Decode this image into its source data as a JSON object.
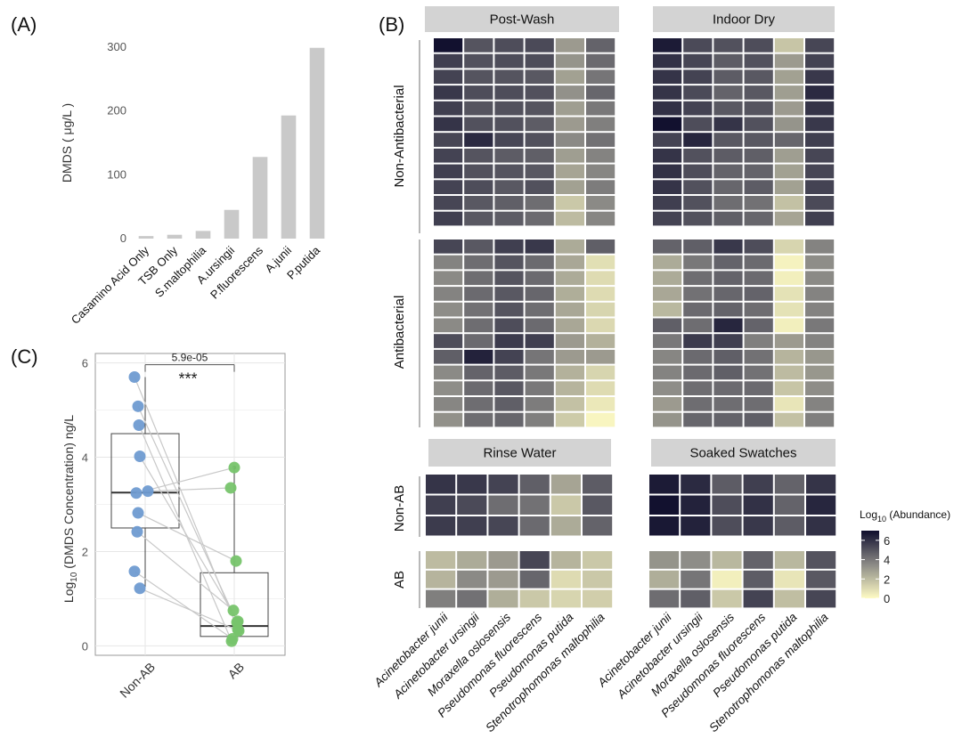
{
  "panel_labels": {
    "a": "(A)",
    "b": "(B)",
    "c": "(C)"
  },
  "colors": {
    "bar": "#c9c9c9",
    "non_ab_point": "#6f9bd1",
    "ab_point": "#77c46b",
    "heat_low": "#fffcc4",
    "heat_mid": "#8b8a86",
    "heat_high": "#0e0d2c",
    "strip": "#d3d3d3"
  },
  "chart_data": [
    {
      "id": "A",
      "type": "bar",
      "title": "",
      "xlabel": "",
      "ylabel": "DMDS ( μg/L )",
      "ylim": [
        0,
        300
      ],
      "yticks": [
        0,
        100,
        200,
        300
      ],
      "categories": [
        "Casamino Acid Only",
        "TSB Only",
        "S.maltophilia",
        "A.ursingii",
        "P.fluorescens",
        "A.junii",
        "P.putida"
      ],
      "values": [
        4,
        6,
        12,
        45,
        128,
        193,
        299
      ]
    },
    {
      "id": "B",
      "type": "heatmap",
      "legend_title_prefix": "Log",
      "legend_title_sub": "10",
      "legend_title_suffix": " (Abundance)",
      "legend_ticks": [
        6,
        4,
        2,
        0
      ],
      "value_range": [
        0,
        7
      ],
      "col_strips": {
        "top": [
          "Post-Wash",
          "Indoor Dry"
        ],
        "bottom": [
          "Rinse Water",
          "Soaked Swatches"
        ]
      },
      "row_strips": {
        "top": [
          "Non-Antibacterial",
          "Antibacterial"
        ],
        "bottom": [
          "Non-AB",
          "AB"
        ]
      },
      "species": [
        "Acinetobacter junii",
        "Acinetobacter ursingii",
        "Moraxella oslosensis",
        "Pseudomonas fluorescens",
        "Pseudomonas putida",
        "Stenotrophomonas maltophilia"
      ],
      "facets": {
        "post_wash_non": [
          [
            6.9,
            5.0,
            5.2,
            5.3,
            3.0,
            4.6
          ],
          [
            5.6,
            5.1,
            5.2,
            5.2,
            3.2,
            4.4
          ],
          [
            5.5,
            5.0,
            5.0,
            4.9,
            2.8,
            4.1
          ],
          [
            5.8,
            5.2,
            5.2,
            5.1,
            3.3,
            4.5
          ],
          [
            5.6,
            5.0,
            5.1,
            5.0,
            2.9,
            4.0
          ],
          [
            5.9,
            5.1,
            5.1,
            4.8,
            3.0,
            3.8
          ],
          [
            5.4,
            6.2,
            5.4,
            5.1,
            3.5,
            4.2
          ],
          [
            5.5,
            5.0,
            4.8,
            4.7,
            2.9,
            3.7
          ],
          [
            5.6,
            5.1,
            5.0,
            4.9,
            2.7,
            3.6
          ],
          [
            5.5,
            5.2,
            4.9,
            5.1,
            2.8,
            3.9
          ],
          [
            5.4,
            4.9,
            4.7,
            4.3,
            1.6,
            3.5
          ],
          [
            5.6,
            4.9,
            4.8,
            4.4,
            2.0,
            3.6
          ]
        ],
        "indoor_dry_non": [
          [
            6.6,
            5.3,
            5.1,
            5.2,
            1.7,
            5.4
          ],
          [
            6.0,
            5.4,
            4.8,
            5.1,
            3.0,
            5.5
          ],
          [
            5.9,
            5.5,
            4.8,
            4.9,
            2.8,
            5.8
          ],
          [
            5.9,
            5.3,
            4.6,
            4.9,
            2.9,
            6.2
          ],
          [
            6.0,
            5.5,
            4.9,
            5.0,
            3.0,
            5.9
          ],
          [
            6.9,
            5.2,
            5.9,
            5.1,
            3.2,
            5.8
          ],
          [
            5.5,
            6.3,
            4.9,
            4.9,
            4.5,
            5.6
          ],
          [
            5.9,
            5.1,
            4.8,
            4.7,
            2.9,
            5.4
          ],
          [
            6.0,
            5.2,
            4.6,
            4.6,
            2.8,
            5.4
          ],
          [
            5.9,
            5.1,
            4.5,
            4.8,
            2.8,
            5.5
          ],
          [
            5.6,
            5.1,
            4.3,
            4.2,
            1.8,
            5.3
          ],
          [
            5.5,
            5.1,
            4.7,
            4.5,
            2.7,
            5.6
          ]
        ],
        "post_wash_ab": [
          [
            5.4,
            4.9,
            5.6,
            5.8,
            2.5,
            4.7
          ],
          [
            3.7,
            4.3,
            5.0,
            4.4,
            2.6,
            0.9
          ],
          [
            3.5,
            4.3,
            5.0,
            4.4,
            2.5,
            1.0
          ],
          [
            3.7,
            4.4,
            4.9,
            4.5,
            2.4,
            1.0
          ],
          [
            3.4,
            4.2,
            5.0,
            4.3,
            2.6,
            1.2
          ],
          [
            3.5,
            4.3,
            5.2,
            4.4,
            2.6,
            1.1
          ],
          [
            5.2,
            4.4,
            5.7,
            5.6,
            3.0,
            2.3
          ],
          [
            4.7,
            6.4,
            5.5,
            4.1,
            3.0,
            3.0
          ],
          [
            3.5,
            4.6,
            4.8,
            4.0,
            2.3,
            1.2
          ],
          [
            3.4,
            4.4,
            4.9,
            4.0,
            2.2,
            1.0
          ],
          [
            3.6,
            4.3,
            4.7,
            3.9,
            1.8,
            0.6
          ],
          [
            3.3,
            4.3,
            4.5,
            3.8,
            1.5,
            0.2
          ]
        ],
        "indoor_dry_ab": [
          [
            4.6,
            4.7,
            5.8,
            5.2,
            1.2,
            3.7
          ],
          [
            2.5,
            4.0,
            4.6,
            4.4,
            0.3,
            3.4
          ],
          [
            2.5,
            4.3,
            4.6,
            4.4,
            0.4,
            3.5
          ],
          [
            2.6,
            4.2,
            4.5,
            4.6,
            0.8,
            3.7
          ],
          [
            2.1,
            4.4,
            4.6,
            4.3,
            0.8,
            3.7
          ],
          [
            4.7,
            4.3,
            6.3,
            4.6,
            0.4,
            4.0
          ],
          [
            4.0,
            5.7,
            5.6,
            3.8,
            3.0,
            3.7
          ],
          [
            3.6,
            4.4,
            4.7,
            4.2,
            2.2,
            3.1
          ],
          [
            3.7,
            4.4,
            4.7,
            4.2,
            2.0,
            3.1
          ],
          [
            3.4,
            4.3,
            4.4,
            4.4,
            1.7,
            3.4
          ],
          [
            3.0,
            4.3,
            4.3,
            4.3,
            0.7,
            3.7
          ],
          [
            3.2,
            4.5,
            4.6,
            4.7,
            1.8,
            3.8
          ]
        ],
        "rinse_non": [
          [
            5.9,
            5.8,
            5.5,
            4.7,
            2.7,
            4.8
          ],
          [
            5.6,
            5.3,
            4.3,
            4.2,
            1.6,
            4.9
          ],
          [
            5.7,
            5.6,
            5.4,
            4.4,
            2.5,
            4.6
          ]
        ],
        "rinse_ab": [
          [
            2.0,
            2.5,
            3.0,
            5.4,
            2.2,
            1.6
          ],
          [
            2.2,
            3.5,
            3.0,
            4.5,
            1.0,
            1.6
          ],
          [
            3.8,
            4.2,
            2.4,
            1.6,
            1.2,
            1.4
          ]
        ],
        "soaked_non": [
          [
            6.6,
            6.2,
            4.8,
            5.6,
            4.6,
            5.9
          ],
          [
            6.9,
            6.4,
            5.2,
            6.0,
            4.6,
            6.3
          ],
          [
            6.7,
            6.4,
            5.2,
            5.8,
            4.8,
            6.0
          ]
        ],
        "soaked_ab": [
          [
            3.2,
            3.4,
            2.1,
            4.6,
            2.1,
            5.0
          ],
          [
            2.4,
            4.1,
            0.4,
            4.8,
            0.7,
            4.9
          ],
          [
            4.3,
            4.7,
            1.6,
            5.5,
            1.9,
            5.4
          ]
        ]
      }
    },
    {
      "id": "C",
      "type": "box_scatter",
      "ylabel_prefix": "Log",
      "ylabel_sub": "10",
      "ylabel_suffix": " (DMDS Concentration) ng/L",
      "categories": [
        "Non-AB",
        "AB"
      ],
      "ylim": [
        -0.2,
        6.2
      ],
      "yticks": [
        0,
        2,
        4,
        6
      ],
      "pvalue_label": "5.9e-05",
      "significance": "***",
      "boxes": [
        {
          "group": "Non-AB",
          "min": 1.25,
          "q1": 2.5,
          "median": 3.25,
          "q3": 4.5,
          "max": 5.7
        },
        {
          "group": "AB",
          "min": 0.08,
          "q1": 0.2,
          "median": 0.42,
          "q3": 1.55,
          "max": 3.78
        }
      ],
      "outliers": [
        {
          "group": "AB",
          "y": 3.78
        }
      ],
      "pairs": [
        [
          5.7,
          0.35
        ],
        [
          5.08,
          0.5
        ],
        [
          4.68,
          0.1
        ],
        [
          4.02,
          0.52
        ],
        [
          3.28,
          3.35
        ],
        [
          3.24,
          3.78
        ],
        [
          2.82,
          1.8
        ],
        [
          2.42,
          0.75
        ],
        [
          1.58,
          0.15
        ],
        [
          1.22,
          0.32
        ]
      ],
      "non_ab_jitter": [
        -0.12,
        -0.08,
        -0.07,
        -0.06,
        0.03,
        -0.1,
        -0.08,
        -0.09,
        -0.12,
        -0.06
      ],
      "ab_jitter": [
        0.04,
        0.03,
        -0.03,
        0.04,
        -0.04,
        0.0,
        0.02,
        -0.01,
        -0.02,
        0.05
      ]
    }
  ]
}
